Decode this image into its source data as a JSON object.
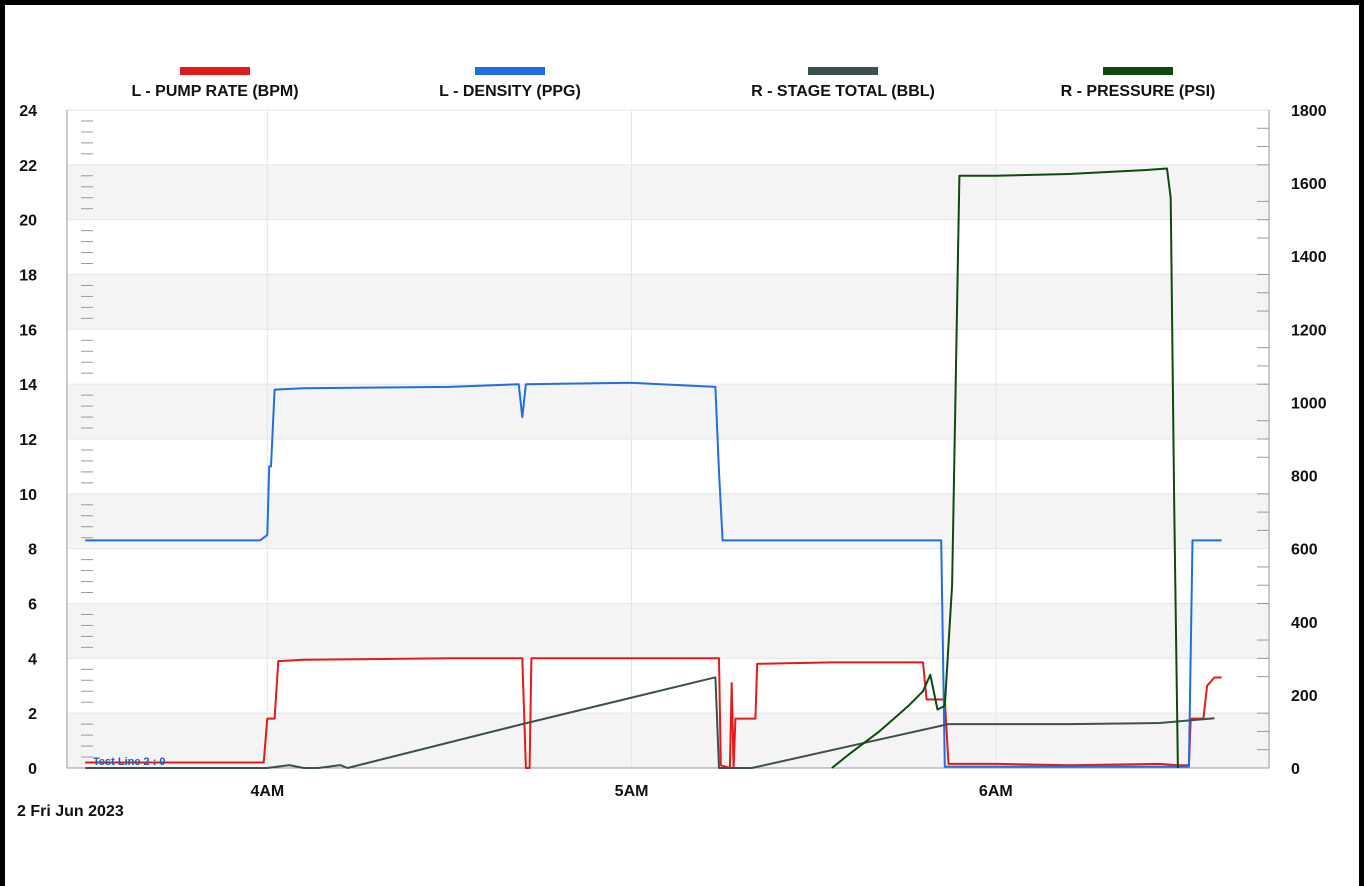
{
  "chart_data": {
    "type": "line",
    "date_label": "2 Fri  Jun 2023",
    "annotation": "Test Line 2 : 0",
    "x_ticks": [
      {
        "label": "4AM",
        "t": 4.0
      },
      {
        "label": "5AM",
        "t": 5.0
      },
      {
        "label": "6AM",
        "t": 6.0
      }
    ],
    "xlim": [
      3.45,
      6.75
    ],
    "left_axis": {
      "ylim": [
        0,
        24
      ],
      "ticks": [
        0,
        2,
        4,
        6,
        8,
        10,
        12,
        14,
        16,
        18,
        20,
        22,
        24
      ]
    },
    "right_axis": {
      "ylim": [
        0,
        1800
      ],
      "ticks": [
        0,
        200,
        400,
        600,
        800,
        1000,
        1200,
        1400,
        1600,
        1800
      ]
    },
    "grid": true,
    "legend_position": "top",
    "series": [
      {
        "name": "L - PUMP RATE (BPM)",
        "axis": "left",
        "color": "#e31a1c",
        "points": [
          [
            3.5,
            0.2
          ],
          [
            3.99,
            0.2
          ],
          [
            4.0,
            1.8
          ],
          [
            4.02,
            1.8
          ],
          [
            4.03,
            3.9
          ],
          [
            4.1,
            3.95
          ],
          [
            4.5,
            4.0
          ],
          [
            4.7,
            4.0
          ],
          [
            4.71,
            0.0
          ],
          [
            4.72,
            0.0
          ],
          [
            4.725,
            4.0
          ],
          [
            5.0,
            4.0
          ],
          [
            5.24,
            4.0
          ],
          [
            5.245,
            0.1
          ],
          [
            5.27,
            0.0
          ],
          [
            5.275,
            3.1
          ],
          [
            5.28,
            0.0
          ],
          [
            5.285,
            1.8
          ],
          [
            5.34,
            1.8
          ],
          [
            5.345,
            3.8
          ],
          [
            5.55,
            3.85
          ],
          [
            5.8,
            3.85
          ],
          [
            5.81,
            2.5
          ],
          [
            5.86,
            2.5
          ],
          [
            5.87,
            0.15
          ],
          [
            6.0,
            0.15
          ],
          [
            6.2,
            0.1
          ],
          [
            6.45,
            0.15
          ],
          [
            6.5,
            0.1
          ],
          [
            6.53,
            0.1
          ],
          [
            6.535,
            1.8
          ],
          [
            6.57,
            1.8
          ],
          [
            6.58,
            3.0
          ],
          [
            6.6,
            3.3
          ],
          [
            6.62,
            3.3
          ]
        ]
      },
      {
        "name": "L - DENSITY (PPG)",
        "axis": "left",
        "color": "#1f6fe0",
        "points": [
          [
            3.5,
            8.3
          ],
          [
            3.98,
            8.3
          ],
          [
            4.0,
            8.5
          ],
          [
            4.005,
            11.0
          ],
          [
            4.01,
            11.0
          ],
          [
            4.02,
            13.8
          ],
          [
            4.1,
            13.85
          ],
          [
            4.5,
            13.9
          ],
          [
            4.69,
            14.0
          ],
          [
            4.7,
            12.8
          ],
          [
            4.71,
            14.0
          ],
          [
            5.0,
            14.05
          ],
          [
            5.23,
            13.9
          ],
          [
            5.24,
            10.8
          ],
          [
            5.25,
            8.3
          ],
          [
            5.85,
            8.3
          ],
          [
            5.86,
            0.05
          ],
          [
            6.53,
            0.05
          ],
          [
            6.54,
            8.3
          ],
          [
            6.62,
            8.3
          ]
        ]
      },
      {
        "name": "R - STAGE TOTAL (BBL)",
        "axis": "right",
        "color": "#3e4f4f",
        "points": [
          [
            3.5,
            0
          ],
          [
            4.0,
            0
          ],
          [
            4.06,
            8
          ],
          [
            4.1,
            0
          ],
          [
            4.14,
            0
          ],
          [
            4.2,
            8
          ],
          [
            4.22,
            0
          ],
          [
            4.7,
            120
          ],
          [
            5.23,
            248
          ],
          [
            5.24,
            0
          ],
          [
            5.33,
            0
          ],
          [
            5.87,
            120
          ],
          [
            6.2,
            120
          ],
          [
            6.45,
            123
          ],
          [
            6.6,
            136
          ]
        ]
      },
      {
        "name": "R - PRESSURE (PSI)",
        "axis": "right",
        "color": "#0e4a0e",
        "points": [
          [
            5.55,
            0
          ],
          [
            5.6,
            40
          ],
          [
            5.68,
            100
          ],
          [
            5.76,
            170
          ],
          [
            5.8,
            210
          ],
          [
            5.82,
            255
          ],
          [
            5.84,
            160
          ],
          [
            5.86,
            170
          ],
          [
            5.88,
            500
          ],
          [
            5.9,
            1620
          ],
          [
            6.0,
            1620
          ],
          [
            6.2,
            1625
          ],
          [
            6.4,
            1635
          ],
          [
            6.47,
            1640
          ],
          [
            6.48,
            1560
          ],
          [
            6.49,
            700
          ],
          [
            6.5,
            0
          ]
        ]
      }
    ]
  }
}
